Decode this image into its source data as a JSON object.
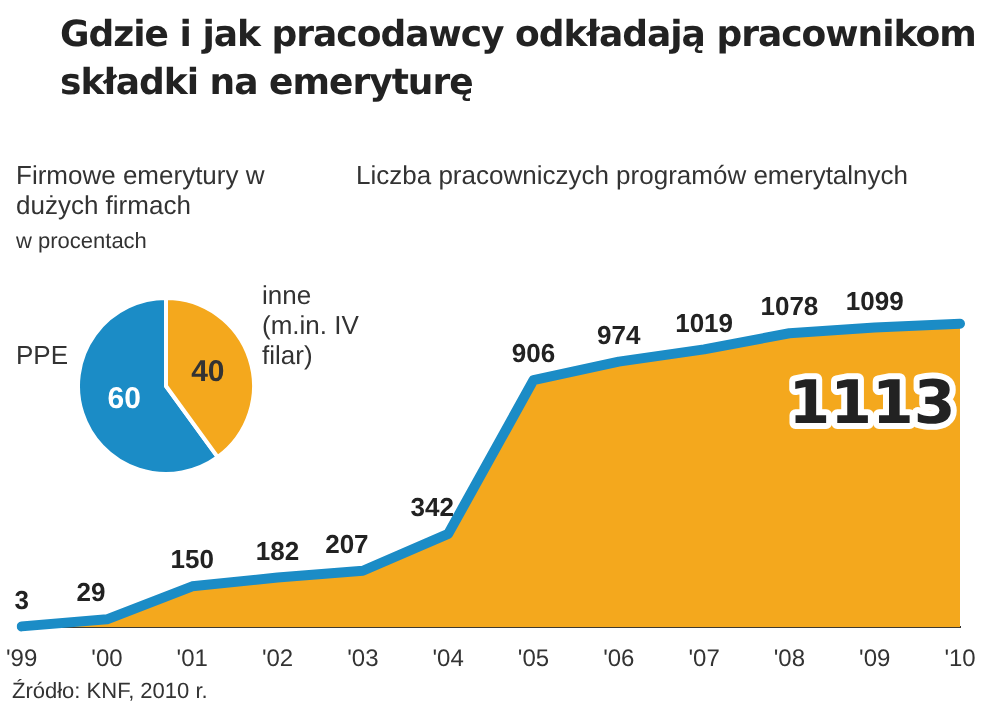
{
  "chart_data": [
    {
      "type": "pie",
      "title": "Firmowe emerytury w dużych firmach",
      "subtitle": "w procentach",
      "categories": [
        "PPE",
        "inne (m.in. IV filar)"
      ],
      "values": [
        60,
        40
      ],
      "colors": [
        "#1b8cc6",
        "#f4a81d"
      ],
      "data_labels": true,
      "legend": false
    },
    {
      "type": "area",
      "title": "Liczba pracowniczych programów emerytalnych",
      "categories": [
        "'99",
        "'00",
        "'01",
        "'02",
        "'03",
        "'04",
        "'05",
        "'06",
        "'07",
        "'08",
        "'09",
        "'10"
      ],
      "series": [
        {
          "color": "#f4a81d",
          "values": [
            3,
            29,
            150,
            182,
            207,
            342,
            906,
            974,
            1019,
            1078,
            1099,
            1113
          ]
        }
      ],
      "data_labels": true,
      "grid": false,
      "legend": false,
      "tick_labels": "x",
      "annotations": [
        "Gdzie i jak pracodawcy odkładają pracownikom składki na emeryturę",
        "Źródło: KNF, 2010 r."
      ]
    }
  ]
}
